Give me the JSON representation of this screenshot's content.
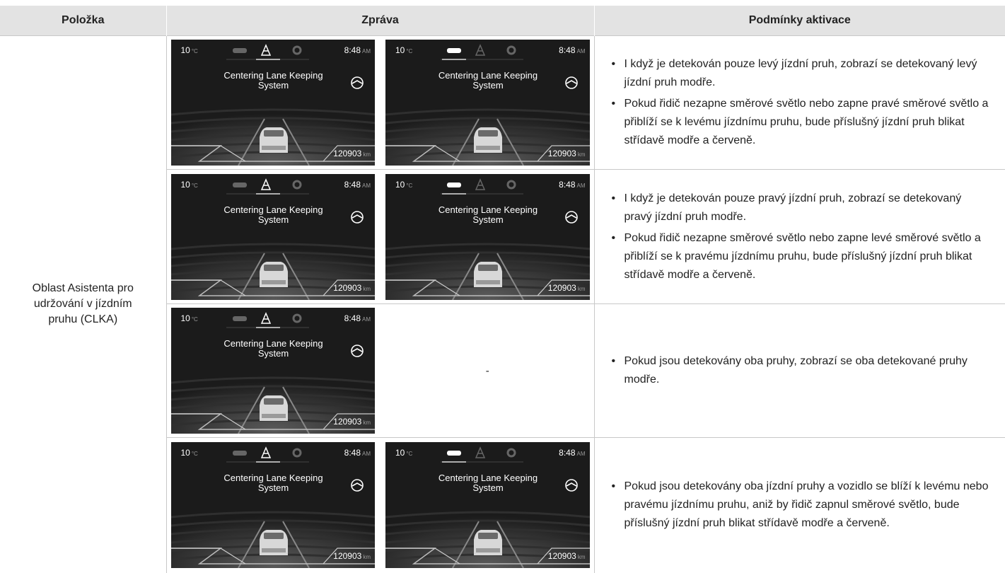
{
  "header": {
    "item": "Položka",
    "message": "Zpráva",
    "conditions": "Podmínky aktivace"
  },
  "item": "Oblast Asistenta pro udržování v jízdním pruhu (CLKA)",
  "rows": [
    {
      "screens": [
        {
          "temperature": "10",
          "temperature_unit": "°C",
          "time": "8:48",
          "time_suffix": "AM",
          "message": "Centering Lane Keeping System",
          "odometer": "120903",
          "odometer_unit": "km",
          "active_tab": "lane"
        },
        {
          "temperature": "10",
          "temperature_unit": "°C",
          "time": "8:48",
          "time_suffix": "AM",
          "message": "Centering Lane Keeping System",
          "odometer": "120903",
          "odometer_unit": "km",
          "active_tab": "car"
        }
      ],
      "conditions": [
        "I když je detekován pouze levý jízdní pruh, zobrazí se detekovaný levý jízdní pruh modře.",
        "Pokud řidič nezapne směrové světlo nebo zapne pravé směrové světlo a přiblíží se k levému jízdnímu pruhu, bude příslušný jízdní pruh blikat střídavě modře a červeně."
      ]
    },
    {
      "screens": [
        {
          "temperature": "10",
          "temperature_unit": "°C",
          "time": "8:48",
          "time_suffix": "AM",
          "message": "Centering Lane Keeping System",
          "odometer": "120903",
          "odometer_unit": "km",
          "active_tab": "lane"
        },
        {
          "temperature": "10",
          "temperature_unit": "°C",
          "time": "8:48",
          "time_suffix": "AM",
          "message": "Centering Lane Keeping System",
          "odometer": "120903",
          "odometer_unit": "km",
          "active_tab": "car"
        }
      ],
      "conditions": [
        "I když je detekován pouze pravý jízdní pruh, zobrazí se detekovaný pravý jízdní pruh modře.",
        "Pokud řidič nezapne směrové světlo nebo zapne levé směrové světlo a přiblíží se k pravému jízdnímu pruhu, bude příslušný jízdní pruh blikat střídavě modře a červeně."
      ]
    },
    {
      "screens": [
        {
          "temperature": "10",
          "temperature_unit": "°C",
          "time": "8:48",
          "time_suffix": "AM",
          "message": "Centering Lane Keeping System",
          "odometer": "120903",
          "odometer_unit": "km",
          "active_tab": "lane"
        }
      ],
      "empty_cell": "-",
      "conditions": [
        "Pokud jsou detekovány oba pruhy, zobrazí se oba detekované pruhy modře."
      ]
    },
    {
      "screens": [
        {
          "temperature": "10",
          "temperature_unit": "°C",
          "time": "8:48",
          "time_suffix": "AM",
          "message": "Centering Lane Keeping System",
          "odometer": "120903",
          "odometer_unit": "km",
          "active_tab": "lane"
        },
        {
          "temperature": "10",
          "temperature_unit": "°C",
          "time": "8:48",
          "time_suffix": "AM",
          "message": "Centering Lane Keeping System",
          "odometer": "120903",
          "odometer_unit": "km",
          "active_tab": "car"
        }
      ],
      "conditions": [
        "Pokud jsou detekovány oba jízdní pruhy a vozidlo se blíží k levému nebo pravému jízdnímu pruhu, aniž by řidič zapnul směrové světlo, bude příslušný jízdní pruh blikat střídavě modře a červeně."
      ]
    }
  ]
}
